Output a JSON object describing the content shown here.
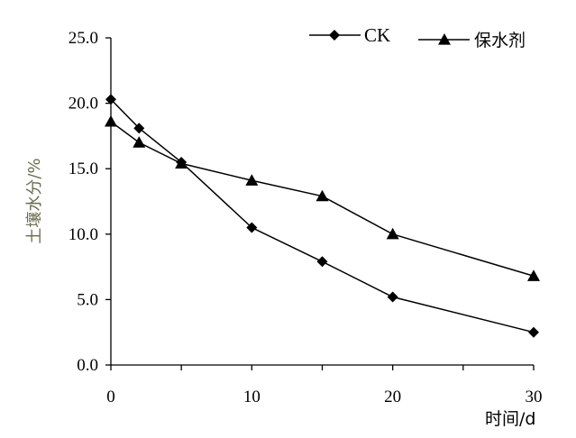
{
  "chart_data": {
    "type": "line",
    "title": "",
    "xlabel": "时间/d",
    "ylabel": "土壤水分/%",
    "xlim": [
      0,
      30
    ],
    "ylim": [
      0,
      25
    ],
    "x_ticks": [
      "0",
      "10",
      "20",
      "30"
    ],
    "x_tick_values": [
      0,
      10,
      20,
      30
    ],
    "y_ticks": [
      "0.0",
      "5.0",
      "10.0",
      "15.0",
      "20.0",
      "25.0"
    ],
    "y_tick_values": [
      0,
      5,
      10,
      15,
      20,
      25
    ],
    "grid": false,
    "legend_position": "top-right",
    "series": [
      {
        "name": "CK",
        "marker": "diamond",
        "color": "#000000",
        "x": [
          0,
          2,
          5,
          10,
          15,
          20,
          30
        ],
        "y": [
          20.3,
          18.1,
          15.5,
          10.5,
          7.9,
          5.2,
          2.5
        ]
      },
      {
        "name": "保水剂",
        "marker": "triangle",
        "color": "#000000",
        "x": [
          0,
          2,
          5,
          10,
          15,
          20,
          30
        ],
        "y": [
          18.6,
          17.0,
          15.4,
          14.1,
          12.9,
          10.0,
          6.8
        ]
      }
    ]
  }
}
